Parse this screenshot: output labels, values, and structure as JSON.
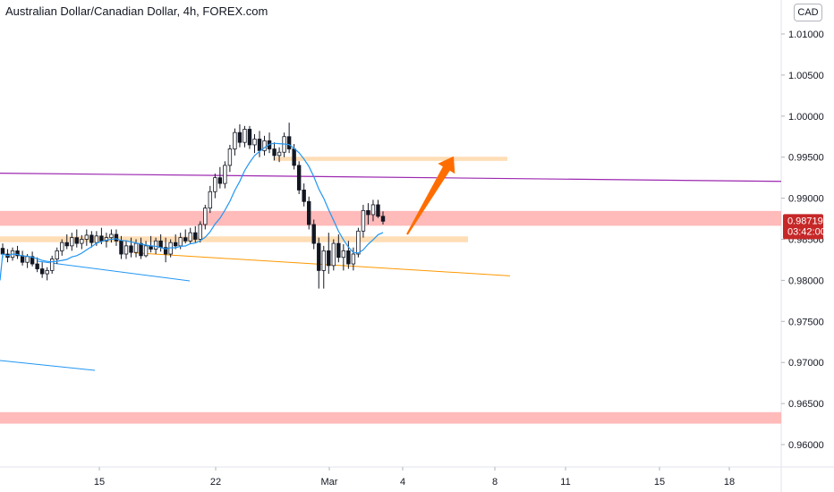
{
  "header": {
    "title": "Australian Dollar/Canadian Dollar, 4h, FOREX.com"
  },
  "price_axis": {
    "currency_button": "CAD",
    "ticks": [
      "1.01000",
      "1.00500",
      "1.00000",
      "0.99500",
      "0.99000",
      "0.98500",
      "0.98000",
      "0.97500",
      "0.97000",
      "0.96500",
      "0.96000"
    ],
    "last_price": "0.98719",
    "countdown": "03:42:00"
  },
  "time_axis": {
    "ticks": [
      "15",
      "22",
      "Mar",
      "4",
      "8",
      "11",
      "15",
      "18"
    ]
  },
  "colors": {
    "up": "#26a69a",
    "down": "#ef5350",
    "candle_body": "#131722",
    "ma": "#2196f3",
    "purple_line": "#9c27b0",
    "orange_line": "#ff9800",
    "support_zone": "#ffb3b3",
    "orange_zone": "#ffd7a8",
    "arrow": "#ff6d00",
    "price_label": "#c62828"
  },
  "chart_data": {
    "type": "candlestick",
    "title": "Australian Dollar/Canadian Dollar, 4h, FOREX.com",
    "ylim": [
      0.9558,
      1.0127
    ],
    "y_ticks": [
      1.01,
      1.005,
      1.0,
      0.995,
      0.99,
      0.985,
      0.98,
      0.975,
      0.97,
      0.965,
      0.96
    ],
    "x_ticks": [
      "15",
      "22",
      "Mar",
      "4",
      "8",
      "11",
      "15",
      "18"
    ],
    "candles": [
      [
        0.9839,
        0.9845,
        0.9828,
        0.9832
      ],
      [
        0.9832,
        0.9838,
        0.9822,
        0.9828
      ],
      [
        0.9828,
        0.984,
        0.9824,
        0.9836
      ],
      [
        0.9836,
        0.9842,
        0.9826,
        0.983
      ],
      [
        0.983,
        0.9836,
        0.9818,
        0.9822
      ],
      [
        0.9822,
        0.9832,
        0.9815,
        0.9829
      ],
      [
        0.9829,
        0.9835,
        0.9817,
        0.982
      ],
      [
        0.982,
        0.9828,
        0.981,
        0.9814
      ],
      [
        0.9814,
        0.9822,
        0.9803,
        0.9808
      ],
      [
        0.9808,
        0.9816,
        0.98,
        0.9812
      ],
      [
        0.9812,
        0.983,
        0.9808,
        0.9826
      ],
      [
        0.9826,
        0.984,
        0.982,
        0.9836
      ],
      [
        0.9836,
        0.985,
        0.983,
        0.9846
      ],
      [
        0.9846,
        0.9856,
        0.9838,
        0.9842
      ],
      [
        0.9842,
        0.9858,
        0.9836,
        0.9852
      ],
      [
        0.9852,
        0.9862,
        0.984,
        0.9845
      ],
      [
        0.9845,
        0.9855,
        0.9838,
        0.985
      ],
      [
        0.985,
        0.9862,
        0.9842,
        0.9855
      ],
      [
        0.9855,
        0.986,
        0.984,
        0.9846
      ],
      [
        0.9846,
        0.986,
        0.9842,
        0.9854
      ],
      [
        0.9854,
        0.9864,
        0.9844,
        0.9848
      ],
      [
        0.9848,
        0.9858,
        0.984,
        0.9852
      ],
      [
        0.9852,
        0.9862,
        0.9846,
        0.9856
      ],
      [
        0.9856,
        0.9862,
        0.9842,
        0.9848
      ],
      [
        0.9848,
        0.9854,
        0.9826,
        0.9832
      ],
      [
        0.9832,
        0.9848,
        0.9826,
        0.9842
      ],
      [
        0.9842,
        0.9852,
        0.9828,
        0.9834
      ],
      [
        0.9834,
        0.985,
        0.9828,
        0.9845
      ],
      [
        0.9845,
        0.9852,
        0.9826,
        0.983
      ],
      [
        0.983,
        0.9848,
        0.9828,
        0.9842
      ],
      [
        0.9842,
        0.9854,
        0.9834,
        0.9838
      ],
      [
        0.9838,
        0.9852,
        0.9832,
        0.9848
      ],
      [
        0.9848,
        0.9856,
        0.9835,
        0.984
      ],
      [
        0.984,
        0.9852,
        0.9822,
        0.9832
      ],
      [
        0.9832,
        0.985,
        0.9828,
        0.9846
      ],
      [
        0.9846,
        0.9856,
        0.9838,
        0.9842
      ],
      [
        0.9842,
        0.9858,
        0.9838,
        0.9852
      ],
      [
        0.9852,
        0.9862,
        0.9845,
        0.9848
      ],
      [
        0.9848,
        0.9864,
        0.9844,
        0.9858
      ],
      [
        0.9858,
        0.9866,
        0.9846,
        0.985
      ],
      [
        0.985,
        0.9872,
        0.9846,
        0.9868
      ],
      [
        0.9868,
        0.9892,
        0.9862,
        0.9888
      ],
      [
        0.9888,
        0.9915,
        0.9882,
        0.9908
      ],
      [
        0.9908,
        0.993,
        0.99,
        0.9925
      ],
      [
        0.9925,
        0.9938,
        0.9912,
        0.9918
      ],
      [
        0.9918,
        0.9945,
        0.9912,
        0.994
      ],
      [
        0.994,
        0.9965,
        0.9932,
        0.996
      ],
      [
        0.996,
        0.9985,
        0.9952,
        0.998
      ],
      [
        0.998,
        0.999,
        0.9962,
        0.9968
      ],
      [
        0.9968,
        0.9988,
        0.9962,
        0.9984
      ],
      [
        0.9984,
        0.9988,
        0.996,
        0.9965
      ],
      [
        0.9965,
        0.9978,
        0.9955,
        0.9972
      ],
      [
        0.9972,
        0.9982,
        0.995,
        0.9958
      ],
      [
        0.9958,
        0.9976,
        0.9952,
        0.997
      ],
      [
        0.997,
        0.998,
        0.9955,
        0.996
      ],
      [
        0.996,
        0.9968,
        0.9946,
        0.9952
      ],
      [
        0.9952,
        0.9962,
        0.9944,
        0.9956
      ],
      [
        0.9956,
        0.998,
        0.995,
        0.9975
      ],
      [
        0.9975,
        0.9992,
        0.9955,
        0.996
      ],
      [
        0.996,
        0.9966,
        0.9935,
        0.994
      ],
      [
        0.994,
        0.9945,
        0.9905,
        0.991
      ],
      [
        0.991,
        0.9918,
        0.989,
        0.9896
      ],
      [
        0.9896,
        0.9902,
        0.9862,
        0.9868
      ],
      [
        0.9868,
        0.9874,
        0.9838,
        0.9845
      ],
      [
        0.9845,
        0.9852,
        0.979,
        0.9812
      ],
      [
        0.9812,
        0.9842,
        0.979,
        0.9836
      ],
      [
        0.9836,
        0.9858,
        0.9808,
        0.9818
      ],
      [
        0.9818,
        0.985,
        0.9812,
        0.9845
      ],
      [
        0.9845,
        0.9856,
        0.9822,
        0.9828
      ],
      [
        0.9828,
        0.9844,
        0.9812,
        0.9836
      ],
      [
        0.9836,
        0.9848,
        0.9814,
        0.982
      ],
      [
        0.982,
        0.984,
        0.9812,
        0.9832
      ],
      [
        0.9832,
        0.9864,
        0.9828,
        0.986
      ],
      [
        0.986,
        0.9892,
        0.9852,
        0.9885
      ],
      [
        0.9885,
        0.9894,
        0.9868,
        0.988
      ],
      [
        0.988,
        0.9898,
        0.9872,
        0.9892
      ],
      [
        0.9892,
        0.9898,
        0.9876,
        0.9878
      ],
      [
        0.9878,
        0.9884,
        0.9868,
        0.9872
      ]
    ],
    "annotations": [
      {
        "type": "zone",
        "label": "support zone",
        "y": [
          0.98665,
          0.98845
        ]
      },
      {
        "type": "zone",
        "label": "lower support zone",
        "y": [
          0.96255,
          0.96395
        ]
      },
      {
        "type": "zone",
        "label": "resistance zone",
        "y": [
          0.99455,
          0.99505
        ]
      },
      {
        "type": "zone",
        "label": "breakout zone",
        "y": [
          0.98465,
          0.98535
        ]
      },
      {
        "type": "trendline",
        "label": "purple line",
        "y": [
          0.99305,
          0.99205
        ]
      },
      {
        "type": "trendline",
        "label": "orange trendline",
        "y": [
          0.98335,
          0.98055
        ]
      },
      {
        "type": "arrow",
        "label": "bullish projection",
        "y": [
          0.9856,
          0.9951
        ]
      }
    ]
  }
}
